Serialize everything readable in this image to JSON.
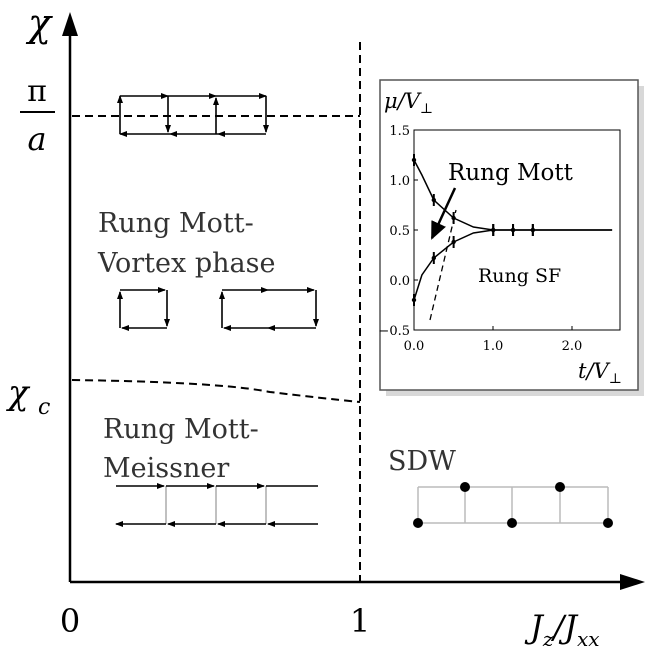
{
  "axes": {
    "y_label": "χ",
    "y_tick_pi": "π",
    "y_tick_a": "a",
    "y_tick_chic": "χ",
    "y_tick_chic_sub": "c",
    "x_tick_0": "0",
    "x_tick_1": "1",
    "x_label": "J",
    "x_label_sub1": "z",
    "x_label_sep": "/J",
    "x_label_sub2": "xx"
  },
  "phases": {
    "vortex_line1": "Rung Mott-",
    "vortex_line2": "Vortex phase",
    "meissner_line1": "Rung Mott-",
    "meissner_line2": "Meissner",
    "sdw": "SDW"
  },
  "inset": {
    "y_label": "μ/V",
    "y_label_sub": "⊥",
    "x_label": "t/V",
    "x_label_sub": "⊥",
    "label_mott": "Rung Mott",
    "label_sf": "Rung SF",
    "y_ticks": [
      "1.5",
      "1.0",
      "0.5",
      "0.0",
      "−0.5"
    ],
    "x_ticks": [
      "0.0",
      "1.0",
      "2.0"
    ]
  },
  "chart_data": {
    "type": "line",
    "xlabel": "t/V⊥",
    "ylabel": "μ/V⊥",
    "xlim": [
      0,
      2.6
    ],
    "ylim": [
      -0.5,
      1.5
    ],
    "series": [
      {
        "name": "Rung Mott",
        "x": [
          0.0,
          0.1,
          0.25,
          0.5,
          0.75,
          1.0,
          1.25,
          1.5,
          2.5
        ],
        "y": [
          1.2,
          1.05,
          0.8,
          0.62,
          0.53,
          0.5,
          0.5,
          0.5,
          0.5
        ]
      },
      {
        "name": "Rung SF",
        "x": [
          0.0,
          0.1,
          0.25,
          0.5,
          0.75,
          1.0,
          1.25,
          1.5,
          2.5
        ],
        "y": [
          -0.2,
          0.05,
          0.22,
          0.38,
          0.47,
          0.5,
          0.5,
          0.5,
          0.5
        ]
      }
    ],
    "error_bar_x": [
      0.0,
      0.25,
      0.5,
      1.0,
      1.25,
      1.5
    ]
  }
}
